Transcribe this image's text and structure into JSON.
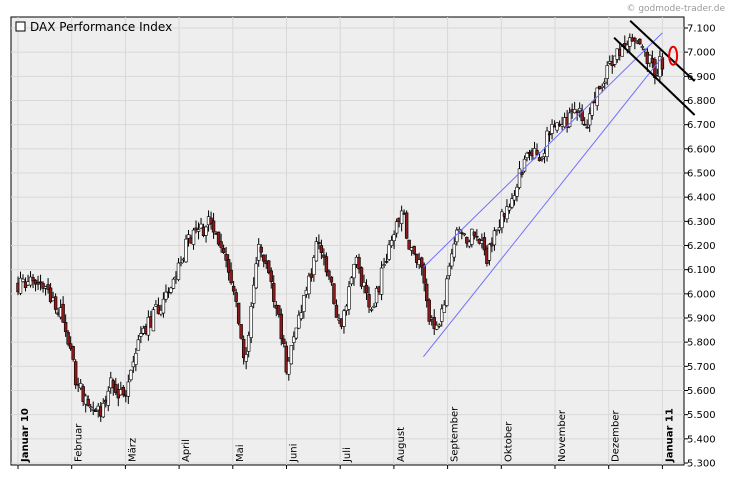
{
  "watermark": "© godmode-trader.de",
  "chart_data": {
    "type": "candlestick",
    "title": "DAX Performance Index",
    "legend": {
      "entries": [
        "DAX Performance Index"
      ],
      "placement": "top-left"
    },
    "x_months": [
      "Januar 10",
      "Februar",
      "März",
      "April",
      "Mai",
      "Juni",
      "Juli",
      "August",
      "September",
      "Oktober",
      "November",
      "Dezember",
      "Januar 11"
    ],
    "bold_months": [
      "Januar 10",
      "Januar 11"
    ],
    "ylim": [
      5300,
      7150
    ],
    "y_ticks": [
      5300,
      5400,
      5500,
      5600,
      5700,
      5800,
      5900,
      6000,
      6100,
      6200,
      6300,
      6400,
      6500,
      6600,
      6700,
      6800,
      6900,
      7000,
      7100
    ],
    "y_tick_labels": [
      "5.300",
      "5.400",
      "5.500",
      "5.600",
      "5.700",
      "5.800",
      "5.900",
      "6.000",
      "6.100",
      "6.200",
      "6.300",
      "6.400",
      "6.500",
      "6.600",
      "6.700",
      "6.800",
      "6.900",
      "7.000",
      "7.100"
    ],
    "grid": true,
    "key_closes": [
      {
        "t": 0.0,
        "v": 6030
      },
      {
        "t": 0.4,
        "v": 6060
      },
      {
        "t": 0.85,
        "v": 5900
      },
      {
        "t": 1.1,
        "v": 5620
      },
      {
        "t": 1.35,
        "v": 5530
      },
      {
        "t": 1.55,
        "v": 5500
      },
      {
        "t": 1.75,
        "v": 5640
      },
      {
        "t": 1.95,
        "v": 5560
      },
      {
        "t": 2.3,
        "v": 5820
      },
      {
        "t": 2.75,
        "v": 6000
      },
      {
        "t": 3.2,
        "v": 6230
      },
      {
        "t": 3.55,
        "v": 6290
      },
      {
        "t": 3.85,
        "v": 6180
      },
      {
        "t": 4.05,
        "v": 5980
      },
      {
        "t": 4.22,
        "v": 5720
      },
      {
        "t": 4.5,
        "v": 6200
      },
      {
        "t": 4.8,
        "v": 5960
      },
      {
        "t": 5.0,
        "v": 5700
      },
      {
        "t": 5.25,
        "v": 5920
      },
      {
        "t": 5.6,
        "v": 6220
      },
      {
        "t": 5.8,
        "v": 6060
      },
      {
        "t": 6.0,
        "v": 5840
      },
      {
        "t": 6.3,
        "v": 6130
      },
      {
        "t": 6.6,
        "v": 5930
      },
      {
        "t": 6.9,
        "v": 6180
      },
      {
        "t": 7.15,
        "v": 6350
      },
      {
        "t": 7.3,
        "v": 6180
      },
      {
        "t": 7.5,
        "v": 6120
      },
      {
        "t": 7.65,
        "v": 5900
      },
      {
        "t": 7.85,
        "v": 5880
      },
      {
        "t": 8.15,
        "v": 6230
      },
      {
        "t": 8.5,
        "v": 6250
      },
      {
        "t": 8.75,
        "v": 6150
      },
      {
        "t": 8.95,
        "v": 6300
      },
      {
        "t": 9.15,
        "v": 6380
      },
      {
        "t": 9.45,
        "v": 6560
      },
      {
        "t": 9.75,
        "v": 6580
      },
      {
        "t": 10.0,
        "v": 6730
      },
      {
        "t": 10.25,
        "v": 6720
      },
      {
        "t": 10.45,
        "v": 6780
      },
      {
        "t": 10.6,
        "v": 6700
      },
      {
        "t": 10.9,
        "v": 6890
      },
      {
        "t": 11.15,
        "v": 7000
      },
      {
        "t": 11.5,
        "v": 7060
      },
      {
        "t": 11.7,
        "v": 6990
      },
      {
        "t": 11.85,
        "v": 6920
      },
      {
        "t": 12.0,
        "v": 6960
      }
    ],
    "trend_channel": {
      "lower": [
        {
          "t": 7.55,
          "v": 5740
        },
        {
          "t": 12.0,
          "v": 6980
        }
      ],
      "upper": [
        {
          "t": 7.55,
          "v": 6110
        },
        {
          "t": 12.0,
          "v": 7080
        }
      ]
    },
    "down_channel": {
      "upper": [
        {
          "t": 11.4,
          "v": 7130
        },
        {
          "t": 12.6,
          "v": 6880
        }
      ],
      "lower": [
        {
          "t": 11.1,
          "v": 7060
        },
        {
          "t": 12.6,
          "v": 6740
        }
      ]
    },
    "highlight_ellipse": {
      "t": 12.2,
      "v": 6985
    }
  }
}
